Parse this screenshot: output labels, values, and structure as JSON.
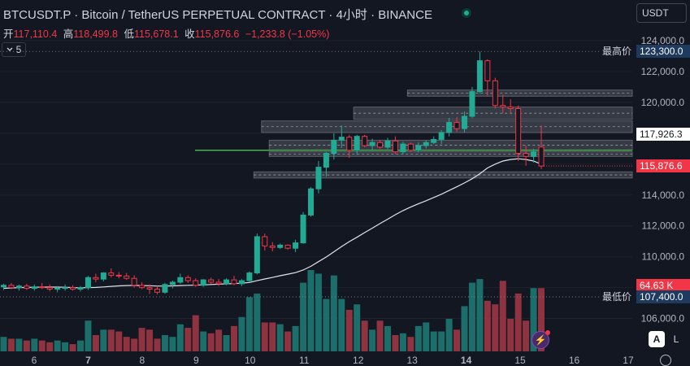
{
  "header": {
    "symbol": "BTCUSDT.P",
    "sep1": " · ",
    "description": "Bitcoin / TetherUS PERPETUAL CONTRACT",
    "sep2": " · ",
    "interval": "4小时",
    "sep3": " · ",
    "exchange": "BINANCE"
  },
  "ohlc": {
    "open_label": "开",
    "open": "117,110.4",
    "high_label": "高",
    "high": "118,499.8",
    "low_label": "低",
    "low": "115,678.1",
    "close_label": "收",
    "close": "115,876.6",
    "change": "−1,233.8 (−1.05%)"
  },
  "indicators_toggle": {
    "count": "5",
    "icon": "chevron-down-icon"
  },
  "currency_select": {
    "value": "USDT"
  },
  "buttons": {
    "auto": "A",
    "log": "L"
  },
  "colors": {
    "up": "#22ab94",
    "down": "#f23645",
    "vol_up": "#1c6e6a",
    "vol_down": "#8f3340",
    "ma": "#e0e3eb",
    "level": "#4caf50",
    "zone": "#5d606b",
    "bg": "#131722",
    "axis_text": "#b2b5be"
  },
  "chart_data": {
    "type": "candlestick",
    "y_axis": {
      "ticks": [
        106000,
        108000,
        110000,
        112000,
        114000,
        116000,
        118000,
        120000,
        122000,
        124000
      ],
      "tick_labels": [
        "106,000.0",
        "108,000.0",
        "110,000.0",
        "112,000.0",
        "114,000.0",
        "116,000.0",
        "118,000.0",
        "120,000.0",
        "122,000.0",
        "124,000.0"
      ]
    },
    "x_axis": {
      "ticks": [
        6,
        7,
        8,
        9,
        10,
        11,
        12,
        13,
        14,
        15,
        16,
        17
      ],
      "tick_labels": [
        "6",
        "7",
        "8",
        "9",
        "10",
        "11",
        "12",
        "13",
        "14",
        "15",
        "16",
        "17"
      ],
      "bold_ticks": [
        "7",
        "14"
      ]
    },
    "candles": [
      {
        "o": 108050,
        "h": 108250,
        "l": 107850,
        "c": 108150
      },
      {
        "o": 108150,
        "h": 108300,
        "l": 107900,
        "c": 108000
      },
      {
        "o": 108000,
        "h": 108200,
        "l": 107800,
        "c": 108100
      },
      {
        "o": 108100,
        "h": 108250,
        "l": 107850,
        "c": 107950
      },
      {
        "o": 107950,
        "h": 108200,
        "l": 107800,
        "c": 108050
      },
      {
        "o": 108050,
        "h": 108300,
        "l": 107900,
        "c": 108000
      },
      {
        "o": 108000,
        "h": 108200,
        "l": 107750,
        "c": 107900
      },
      {
        "o": 107900,
        "h": 108100,
        "l": 107700,
        "c": 107950
      },
      {
        "o": 107950,
        "h": 108200,
        "l": 107800,
        "c": 108000
      },
      {
        "o": 108000,
        "h": 108150,
        "l": 107800,
        "c": 107900
      },
      {
        "o": 107900,
        "h": 108100,
        "l": 107750,
        "c": 108000
      },
      {
        "o": 108000,
        "h": 108750,
        "l": 107850,
        "c": 108650
      },
      {
        "o": 108650,
        "h": 108900,
        "l": 108350,
        "c": 108550
      },
      {
        "o": 108550,
        "h": 109000,
        "l": 108400,
        "c": 108950
      },
      {
        "o": 108950,
        "h": 109250,
        "l": 108650,
        "c": 108800
      },
      {
        "o": 108800,
        "h": 109000,
        "l": 108600,
        "c": 108750
      },
      {
        "o": 108750,
        "h": 108950,
        "l": 108500,
        "c": 108600
      },
      {
        "o": 108600,
        "h": 108800,
        "l": 108000,
        "c": 108150
      },
      {
        "o": 108150,
        "h": 108350,
        "l": 107900,
        "c": 108000
      },
      {
        "o": 108000,
        "h": 108200,
        "l": 107600,
        "c": 107900
      },
      {
        "o": 107900,
        "h": 108100,
        "l": 107550,
        "c": 107700
      },
      {
        "o": 107700,
        "h": 108300,
        "l": 107600,
        "c": 108200
      },
      {
        "o": 108200,
        "h": 108450,
        "l": 107950,
        "c": 108350
      },
      {
        "o": 108350,
        "h": 108900,
        "l": 108250,
        "c": 108650
      },
      {
        "o": 108650,
        "h": 108800,
        "l": 108300,
        "c": 108450
      },
      {
        "o": 108450,
        "h": 108600,
        "l": 108050,
        "c": 108150
      },
      {
        "o": 108150,
        "h": 108550,
        "l": 108050,
        "c": 108500
      },
      {
        "o": 108500,
        "h": 108650,
        "l": 108250,
        "c": 108350
      },
      {
        "o": 108350,
        "h": 108550,
        "l": 108100,
        "c": 108250
      },
      {
        "o": 108250,
        "h": 108600,
        "l": 108150,
        "c": 108500
      },
      {
        "o": 108500,
        "h": 108750,
        "l": 108150,
        "c": 108250
      },
      {
        "o": 108250,
        "h": 108550,
        "l": 108100,
        "c": 108450
      },
      {
        "o": 108450,
        "h": 109050,
        "l": 108350,
        "c": 108950
      },
      {
        "o": 108950,
        "h": 111500,
        "l": 108850,
        "c": 111300
      },
      {
        "o": 111300,
        "h": 111500,
        "l": 110400,
        "c": 110700
      },
      {
        "o": 110700,
        "h": 110950,
        "l": 110350,
        "c": 110600
      },
      {
        "o": 110600,
        "h": 110850,
        "l": 110500,
        "c": 110750
      },
      {
        "o": 110750,
        "h": 110800,
        "l": 110450,
        "c": 110550
      },
      {
        "o": 110550,
        "h": 111100,
        "l": 110300,
        "c": 110900
      },
      {
        "o": 110900,
        "h": 112900,
        "l": 110850,
        "c": 112700
      },
      {
        "o": 112700,
        "h": 114500,
        "l": 112600,
        "c": 114400
      },
      {
        "o": 114400,
        "h": 116200,
        "l": 114100,
        "c": 115800
      },
      {
        "o": 115800,
        "h": 116800,
        "l": 115200,
        "c": 116700
      },
      {
        "o": 116700,
        "h": 118000,
        "l": 116300,
        "c": 117550
      },
      {
        "o": 117550,
        "h": 118500,
        "l": 117050,
        "c": 117750
      },
      {
        "o": 117750,
        "h": 117900,
        "l": 116400,
        "c": 116900
      },
      {
        "o": 116900,
        "h": 117900,
        "l": 116600,
        "c": 117800
      },
      {
        "o": 117800,
        "h": 117900,
        "l": 117100,
        "c": 117200
      },
      {
        "o": 117200,
        "h": 117650,
        "l": 116850,
        "c": 117400
      },
      {
        "o": 117400,
        "h": 117550,
        "l": 117000,
        "c": 117100
      },
      {
        "o": 117100,
        "h": 117700,
        "l": 116950,
        "c": 117500
      },
      {
        "o": 117500,
        "h": 117800,
        "l": 116650,
        "c": 116800
      },
      {
        "o": 116800,
        "h": 117450,
        "l": 116650,
        "c": 117300
      },
      {
        "o": 117300,
        "h": 117400,
        "l": 116800,
        "c": 116900
      },
      {
        "o": 116900,
        "h": 117400,
        "l": 116750,
        "c": 117200
      },
      {
        "o": 117200,
        "h": 117550,
        "l": 117000,
        "c": 117400
      },
      {
        "o": 117400,
        "h": 117800,
        "l": 117300,
        "c": 117600
      },
      {
        "o": 117600,
        "h": 118200,
        "l": 117300,
        "c": 118050
      },
      {
        "o": 118050,
        "h": 119000,
        "l": 117800,
        "c": 118700
      },
      {
        "o": 118700,
        "h": 119050,
        "l": 118100,
        "c": 118300
      },
      {
        "o": 118300,
        "h": 119400,
        "l": 118050,
        "c": 119100
      },
      {
        "o": 119100,
        "h": 121000,
        "l": 119000,
        "c": 120700
      },
      {
        "o": 120700,
        "h": 123300,
        "l": 120600,
        "c": 122700
      },
      {
        "o": 122700,
        "h": 122800,
        "l": 120450,
        "c": 121400
      },
      {
        "o": 121400,
        "h": 121600,
        "l": 119600,
        "c": 119800
      },
      {
        "o": 119800,
        "h": 120500,
        "l": 119300,
        "c": 119700
      },
      {
        "o": 119700,
        "h": 120200,
        "l": 119300,
        "c": 119600
      },
      {
        "o": 119600,
        "h": 119800,
        "l": 116200,
        "c": 116700
      },
      {
        "o": 116700,
        "h": 117200,
        "l": 115900,
        "c": 116500
      },
      {
        "o": 116500,
        "h": 117000,
        "l": 116100,
        "c": 116800
      },
      {
        "o": 117110,
        "h": 118500,
        "l": 115678,
        "c": 115877
      }
    ],
    "volume": [
      8,
      7,
      7,
      6,
      7,
      6,
      5,
      6,
      5,
      4,
      6,
      17,
      9,
      12,
      12,
      11,
      8,
      7,
      13,
      12,
      7,
      9,
      8,
      15,
      13,
      20,
      11,
      10,
      12,
      9,
      14,
      19,
      30,
      32,
      16,
      16,
      15,
      11,
      14,
      38,
      45,
      43,
      29,
      42,
      29,
      23,
      26,
      17,
      12,
      17,
      14,
      9,
      10,
      8,
      14,
      16,
      11,
      11,
      18,
      12,
      25,
      38,
      40,
      28,
      26,
      39,
      18,
      32,
      17,
      35,
      35
    ],
    "ma_line": [
      107950,
      107980,
      108000,
      108010,
      108020,
      108030,
      108030,
      108030,
      108020,
      108000,
      107990,
      108000,
      108010,
      108040,
      108080,
      108110,
      108130,
      108140,
      108130,
      108120,
      108100,
      108100,
      108110,
      108130,
      108150,
      108160,
      108180,
      108200,
      108220,
      108240,
      108260,
      108290,
      108330,
      108450,
      108560,
      108660,
      108770,
      108870,
      108970,
      109140,
      109380,
      109680,
      109980,
      110320,
      110660,
      110980,
      111260,
      111560,
      111850,
      112150,
      112430,
      112720,
      112990,
      113220,
      113430,
      113630,
      113840,
      114050,
      114290,
      114530,
      114780,
      115050,
      115380,
      115750,
      116000,
      116200,
      116300,
      116350,
      116300,
      116200,
      116000
    ],
    "support_line": 116900,
    "zones": [
      {
        "top": 118800,
        "bottom": 118050,
        "from": 34,
        "to": "end"
      },
      {
        "top": 119700,
        "bottom": 118900,
        "from": 46,
        "to": "end"
      },
      {
        "top": 117550,
        "bottom": 116900,
        "from": 35,
        "to": "end"
      },
      {
        "top": 116800,
        "bottom": 116500,
        "from": 35,
        "to": "end"
      },
      {
        "top": 115500,
        "bottom": 115100,
        "from": 33,
        "to": "end"
      },
      {
        "top": 120800,
        "bottom": 120400,
        "from": 53,
        "to": "end"
      }
    ],
    "dashed_levels": [
      123300,
      107400
    ],
    "price_tags": [
      {
        "label": "最高价",
        "value": "123,300.0",
        "price": 123300,
        "kind": "high"
      },
      {
        "label": "",
        "value": "117,926.3",
        "price": 117926,
        "kind": "white"
      },
      {
        "label": "",
        "value": "115,876.6",
        "price": 115877,
        "kind": "last"
      },
      {
        "label": "",
        "value": "64.63 K",
        "price": 108150,
        "kind": "volume"
      },
      {
        "label": "最低价",
        "value": "107,400.0",
        "price": 107400,
        "kind": "low"
      }
    ]
  }
}
